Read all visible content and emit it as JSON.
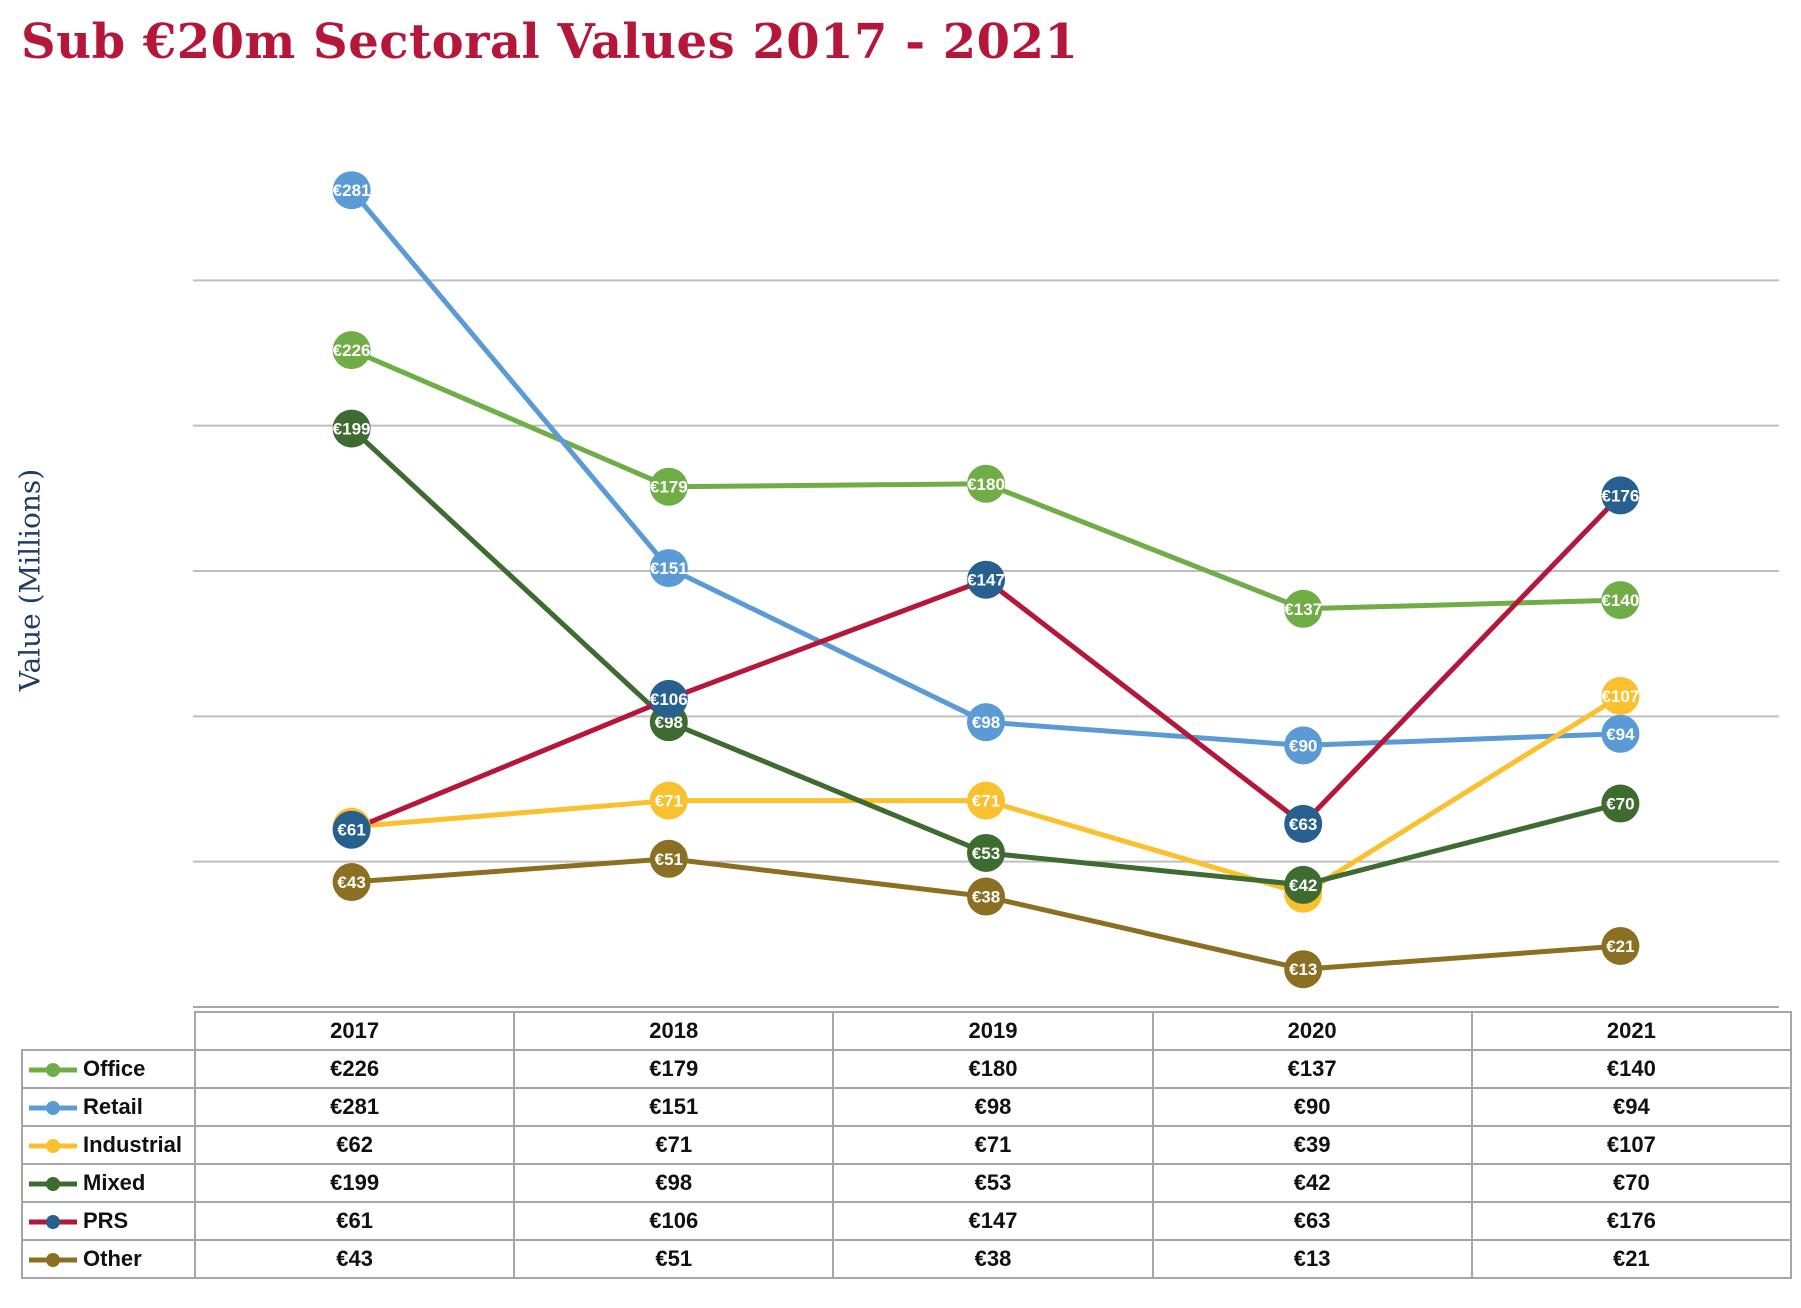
{
  "chart_data": {
    "type": "line",
    "title": "Sub €20m Sectoral Values 2017 - 2021",
    "ylabel": "Value (Millions)",
    "xlabel": "",
    "categories": [
      "2017",
      "2018",
      "2019",
      "2020",
      "2021"
    ],
    "ylim": [
      0,
      300
    ],
    "grid": true,
    "series": [
      {
        "name": "Office",
        "color": "#70ad47",
        "marker_color": "#70ad47",
        "values": [
          226,
          179,
          180,
          137,
          140
        ]
      },
      {
        "name": "Retail",
        "color": "#5b9bd5",
        "marker_color": "#5b9bd5",
        "values": [
          281,
          151,
          98,
          90,
          94
        ]
      },
      {
        "name": "Industrial",
        "color": "#fbc02d",
        "marker_color": "#fbc02d",
        "values": [
          62,
          71,
          71,
          39,
          107
        ]
      },
      {
        "name": "Mixed",
        "color": "#3e6b2f",
        "marker_color": "#3e6b2f",
        "values": [
          199,
          98,
          53,
          42,
          70
        ]
      },
      {
        "name": "PRS",
        "color": "#b5173b",
        "marker_color": "#275f8f",
        "values": [
          61,
          106,
          147,
          63,
          176
        ]
      },
      {
        "name": "Other",
        "color": "#8b6f22",
        "marker_color": "#8b6f22",
        "values": [
          43,
          51,
          38,
          13,
          21
        ]
      }
    ],
    "value_prefix": "€",
    "data_table": true
  }
}
